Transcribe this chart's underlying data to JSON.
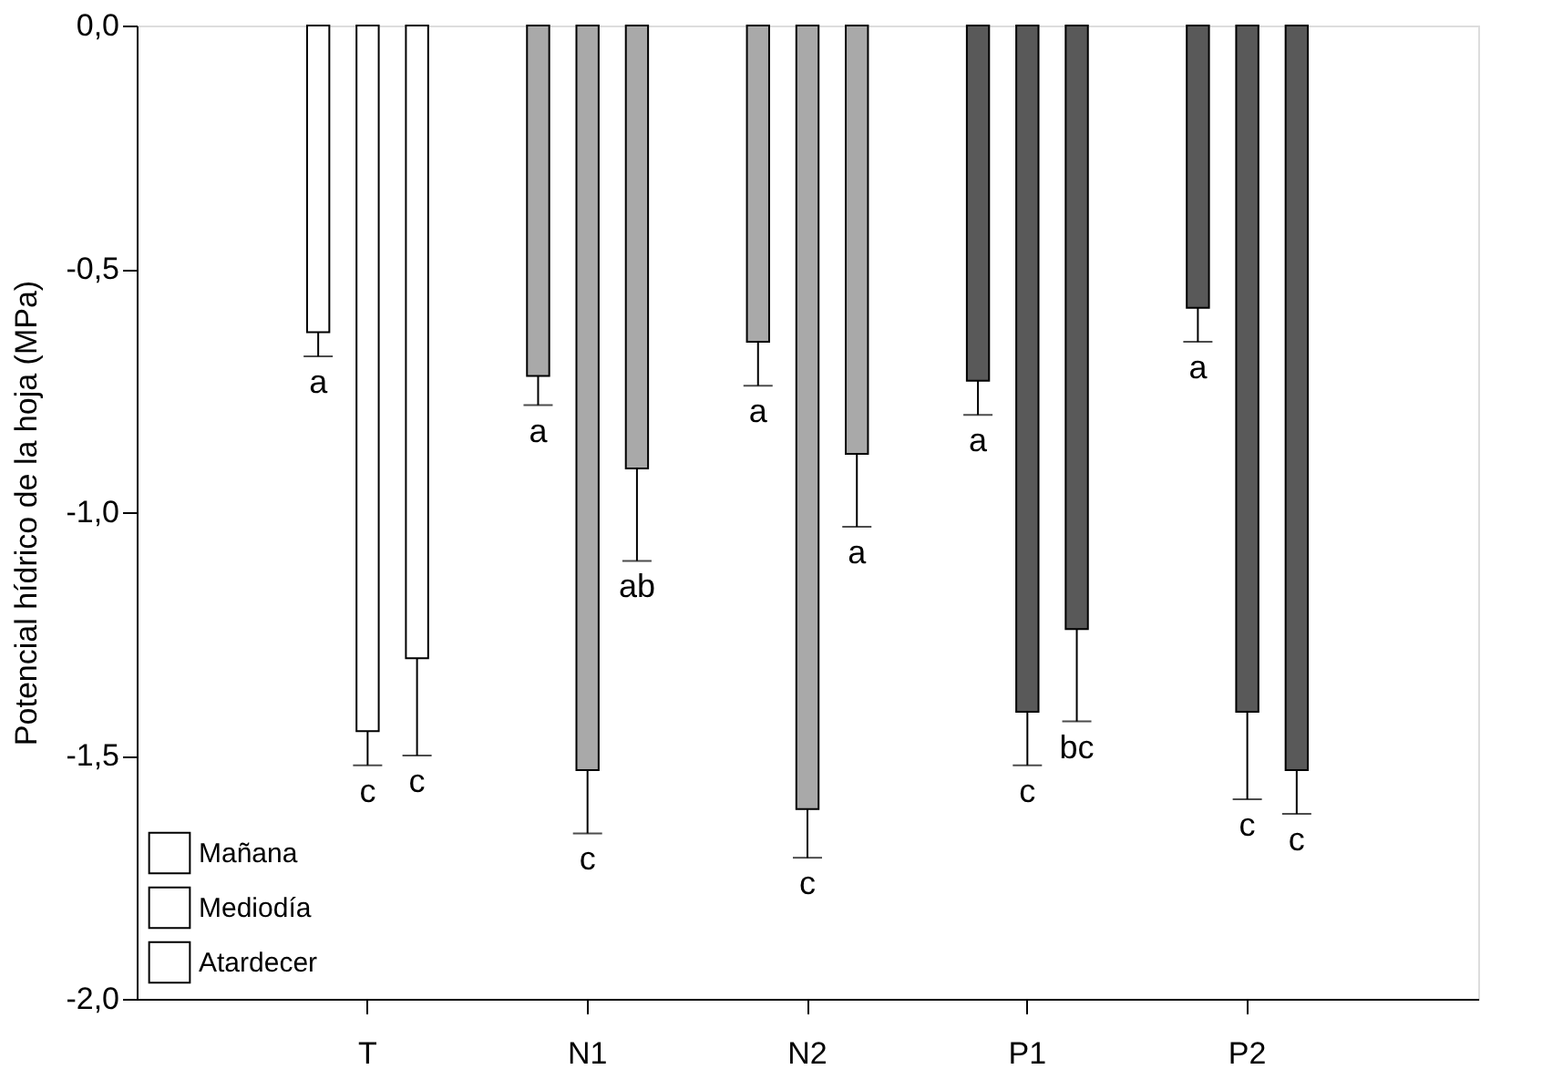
{
  "chart_data": {
    "type": "bar",
    "ylabel": "Potencial hídrico de la hoja (MPa)",
    "categories": [
      "T",
      "N1",
      "N2",
      "P1",
      "P2"
    ],
    "series": [
      {
        "name": "Mañana",
        "color": "#ffffff",
        "colors": [
          "#ffffff",
          "#a9a9a9",
          "#a9a9a9",
          "#595959",
          "#595959"
        ],
        "values": [
          -0.63,
          -0.72,
          -0.65,
          -0.73,
          -0.58
        ],
        "errors": [
          [
            -0.68,
            -0.63
          ],
          [
            -0.78,
            -0.72
          ],
          [
            -0.74,
            -0.65
          ],
          [
            -0.8,
            -0.73
          ],
          [
            -0.65,
            -0.58
          ]
        ],
        "value_labels": [
          "a",
          "a",
          "a",
          "a",
          "a"
        ]
      },
      {
        "name": "Mediodía",
        "color": "#ffffff",
        "colors": [
          "#ffffff",
          "#a9a9a9",
          "#a9a9a9",
          "#595959",
          "#595959"
        ],
        "values": [
          -1.45,
          -1.53,
          -1.61,
          -1.41,
          -1.41
        ],
        "errors": [
          [
            -1.52,
            -1.45
          ],
          [
            -1.66,
            -1.53
          ],
          [
            -1.71,
            -1.61
          ],
          [
            -1.52,
            -1.41
          ],
          [
            -1.59,
            -1.41
          ]
        ],
        "value_labels": [
          "c",
          "c",
          "c",
          "c",
          "c"
        ]
      },
      {
        "name": "Atardecer",
        "color": "#ffffff",
        "colors": [
          "#ffffff",
          "#a9a9a9",
          "#a9a9a9",
          "#595959",
          "#595959"
        ],
        "values": [
          -1.3,
          -0.91,
          -0.88,
          -1.24,
          -1.53
        ],
        "errors": [
          [
            -1.5,
            -1.3
          ],
          [
            -1.1,
            -0.91
          ],
          [
            -1.03,
            -0.88
          ],
          [
            -1.43,
            -1.24
          ],
          [
            -1.62,
            -1.53
          ]
        ],
        "value_labels": [
          "c",
          "ab",
          "a",
          "bc",
          "c"
        ]
      }
    ],
    "ylim": [
      -2.0,
      0.0
    ],
    "yticks": [
      {
        "value": 0,
        "label": "0,0"
      },
      {
        "value": -0.5,
        "label": "-0,5"
      },
      {
        "value": -1.0,
        "label": "-1,0"
      },
      {
        "value": -1.5,
        "label": "-1,5"
      },
      {
        "value": -2.0,
        "label": "-2,0"
      }
    ],
    "legend": "bottom left",
    "grid": false
  }
}
